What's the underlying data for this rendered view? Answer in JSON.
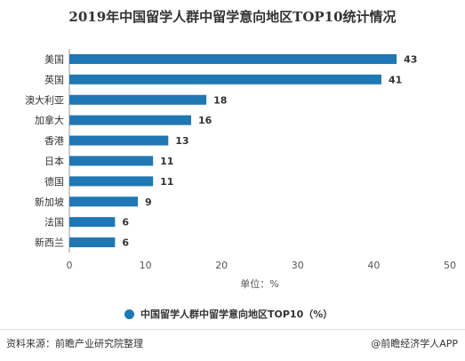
{
  "chart_data": {
    "type": "bar",
    "orientation": "horizontal",
    "title": "2019年中国留学人群中留学意向地区TOP10统计情况",
    "categories": [
      "美国",
      "英国",
      "澳大利亚",
      "加拿大",
      "香港",
      "日本",
      "德国",
      "新加坡",
      "法国",
      "新西兰"
    ],
    "series": [
      {
        "name": "中国留学人群中留学意向地区TOP10（%）",
        "values": [
          43,
          41,
          18,
          16,
          13,
          11,
          11,
          9,
          6,
          6
        ]
      }
    ],
    "xlim": [
      0,
      50
    ],
    "xticks": [
      0,
      10,
      20,
      30,
      40,
      50
    ],
    "xlabel": "单位：%",
    "bar_color": "#1f77b4",
    "grid": false,
    "legend_position": "bottom"
  },
  "footer": {
    "source": "资料来源：前瞻产业研究院整理",
    "brand": "@前瞻经济学人APP"
  }
}
